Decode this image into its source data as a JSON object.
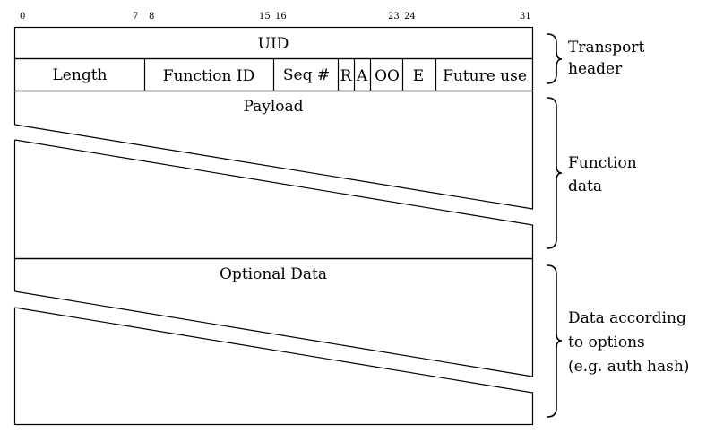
{
  "bit_markers": [
    "0",
    "7",
    "8",
    "15",
    "16",
    "23",
    "24",
    "31"
  ],
  "header": {
    "uid_label": "UID",
    "fields": {
      "length": "Length",
      "function_id": "Function ID",
      "seq": "Seq #",
      "r": "R",
      "a": "A",
      "oo": "OO",
      "e": "E",
      "future_use": "Future use"
    }
  },
  "sections": {
    "payload": "Payload",
    "optional": "Optional Data"
  },
  "braces": {
    "transport": [
      "Transport",
      "header"
    ],
    "function": [
      "Function",
      "data"
    ],
    "options": [
      "Data according",
      "to options",
      "(e.g. auth hash)"
    ]
  }
}
